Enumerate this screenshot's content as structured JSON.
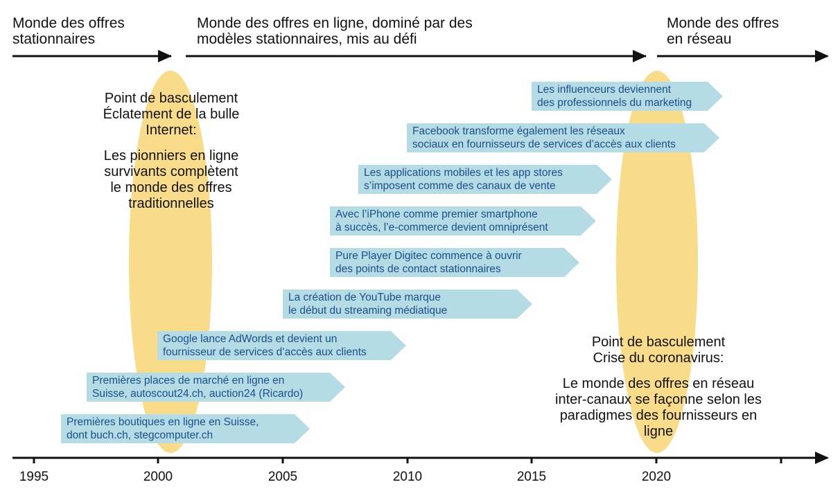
{
  "eras": [
    {
      "line1": "Monde des offres",
      "line2": "stationnaires"
    },
    {
      "line1": "Monde des offres en ligne, dominé par des",
      "line2": "modèles stationnaires, mis au défi"
    },
    {
      "line1": "Monde des offres",
      "line2": "en réseau"
    }
  ],
  "tipping_points": [
    {
      "title1": "Point de basculement",
      "title2": "Éclatement de la bulle",
      "title3": "Internet:",
      "desc1": "Les pionniers en ligne",
      "desc2": "survivants complètent",
      "desc3": "le monde des offres",
      "desc4": "traditionnelles"
    },
    {
      "title1": "Point de basculement",
      "title2": "Crise du coronavirus:",
      "desc1": "Le monde des offres en réseau",
      "desc2": "inter-canaux se façonne selon les",
      "desc3": "paradigmes des fournisseurs en ligne"
    }
  ],
  "events": [
    {
      "line1": "Les influenceurs deviennent",
      "line2": "des professionnels du marketing"
    },
    {
      "line1": "Facebook transforme également les réseaux",
      "line2": "sociaux en fournisseurs de services d’accès aux clients"
    },
    {
      "line1": "Les applications mobiles et les app stores",
      "line2": "s’imposent comme des canaux de vente"
    },
    {
      "line1": "Avec l’iPhone comme premier smartphone",
      "line2": "à succès, l’e-commerce devient omniprésent"
    },
    {
      "line1": "Pure Player Digitec commence à ouvrir",
      "line2": "des points de contact stationnaires"
    },
    {
      "line1": "La création de YouTube marque",
      "line2": "le début du streaming médiatique"
    },
    {
      "line1": "Google lance AdWords et devient un",
      "line2": "fournisseur de services d’accès aux clients"
    },
    {
      "line1": "Premières places de marché en ligne en",
      "line2": "Suisse, autoscout24.ch, auction24 (Ricardo)"
    },
    {
      "line1": "Premières boutiques en ligne en Suisse,",
      "line2": "dont buch.ch, stegcomputer.ch"
    }
  ],
  "timeline": {
    "years": [
      "1995",
      "2000",
      "2005",
      "2010",
      "2015",
      "2020"
    ]
  },
  "colors": {
    "highlight": "#f8dc8a",
    "event_fill": "#b5dbe4",
    "event_text": "#1a4f8a",
    "line": "#111111"
  }
}
